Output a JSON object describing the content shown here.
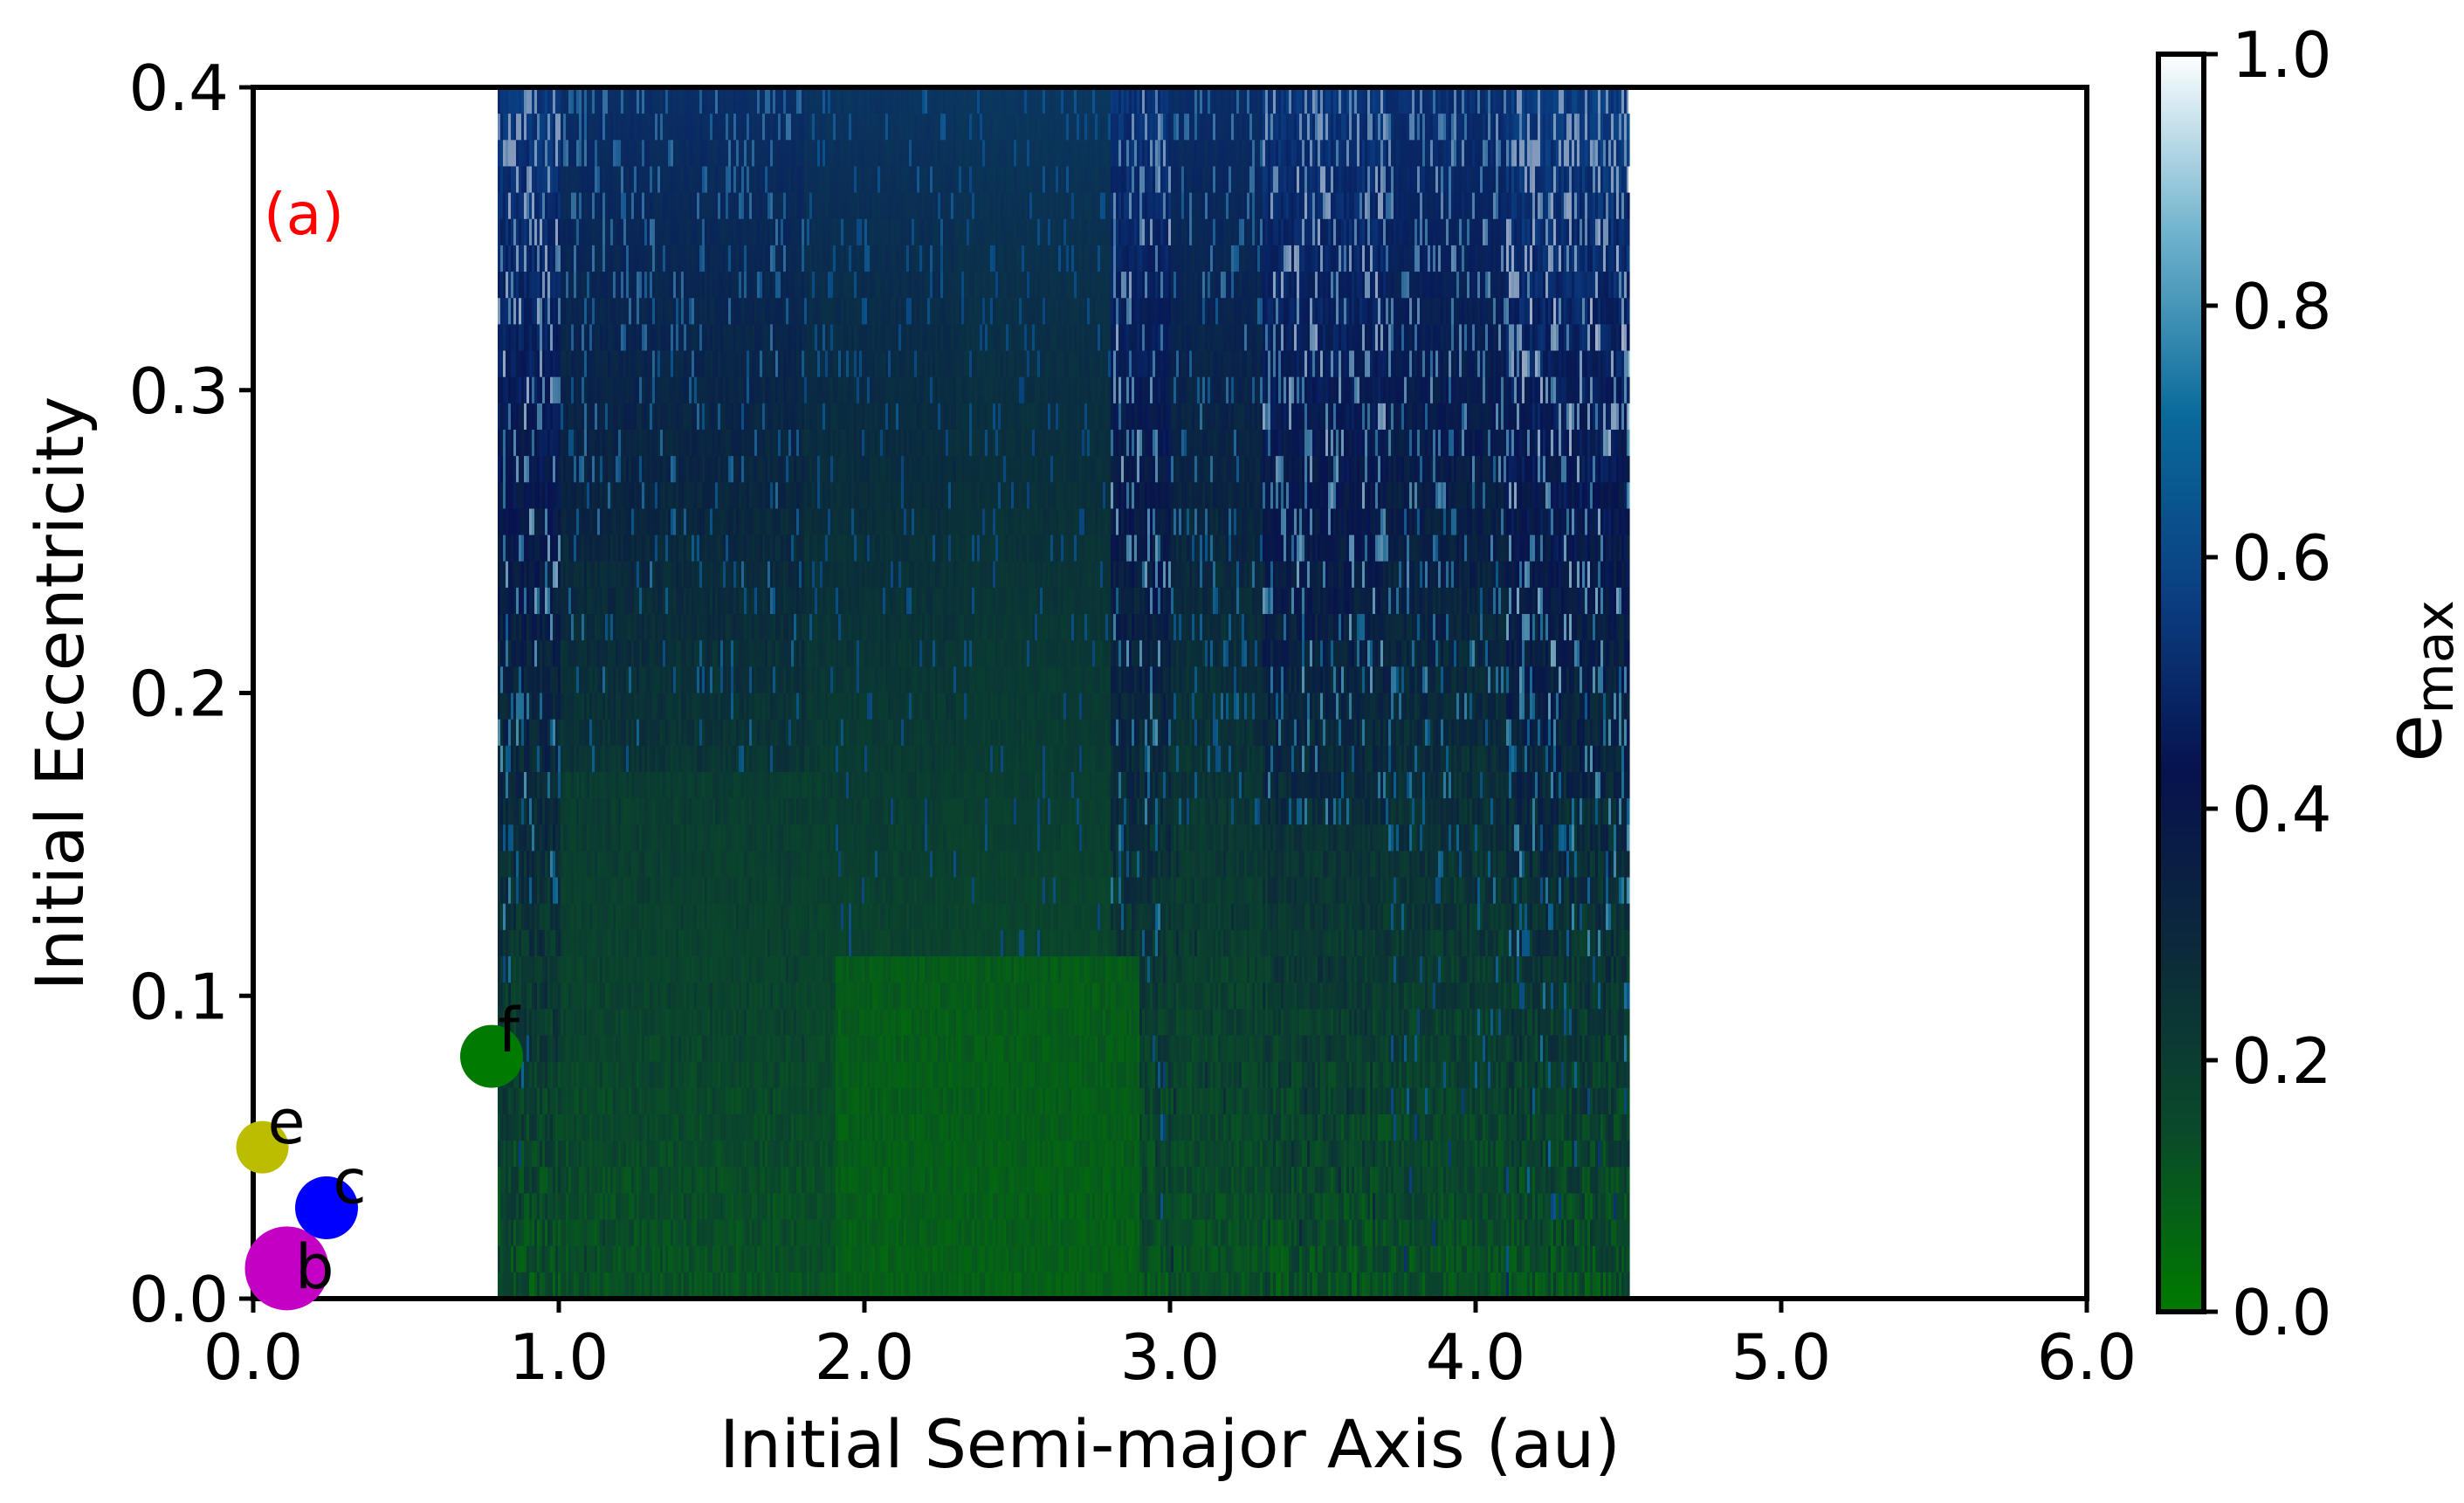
{
  "chart_data": {
    "type": "heatmap",
    "panel_label": "(a)",
    "xlabel": "Initial Semi-major Axis (au)",
    "ylabel": "Initial Eccentricity",
    "xlim": [
      0.0,
      6.0
    ],
    "ylim": [
      0.0,
      0.4
    ],
    "x_ticks": [
      "0.0",
      "1.0",
      "2.0",
      "3.0",
      "4.0",
      "5.0",
      "6.0"
    ],
    "y_ticks": [
      "0.0",
      "0.1",
      "0.2",
      "0.3",
      "0.4"
    ],
    "colorbar": {
      "label_main": "e",
      "label_sub": "max",
      "range": [
        0.0,
        1.0
      ],
      "ticks": [
        "0.0",
        "0.2",
        "0.4",
        "0.6",
        "0.8",
        "1.0"
      ],
      "colormap_stops": [
        "#007a00",
        "#0a4a2a",
        "#0c2a3a",
        "#07124e",
        "#0b3f82",
        "#0a6a9a",
        "#6fb2cc",
        "#ffffff"
      ]
    },
    "stable_region": {
      "a_min": 0.8,
      "a_max": 4.5,
      "e_min": 0.0,
      "e_max": 0.4
    },
    "planets": [
      {
        "name": "b",
        "a": 0.11,
        "e": 0.01,
        "color": "#c400c4",
        "size": 4
      },
      {
        "name": "c",
        "a": 0.24,
        "e": 0.03,
        "color": "#0000ff",
        "size": 3
      },
      {
        "name": "e",
        "a": 0.03,
        "e": 0.05,
        "color": "#bdbd00",
        "size": 2.5
      },
      {
        "name": "f",
        "a": 0.78,
        "e": 0.08,
        "color": "#007a00",
        "size": 3
      }
    ],
    "panel_label_color": "#ff0000"
  }
}
